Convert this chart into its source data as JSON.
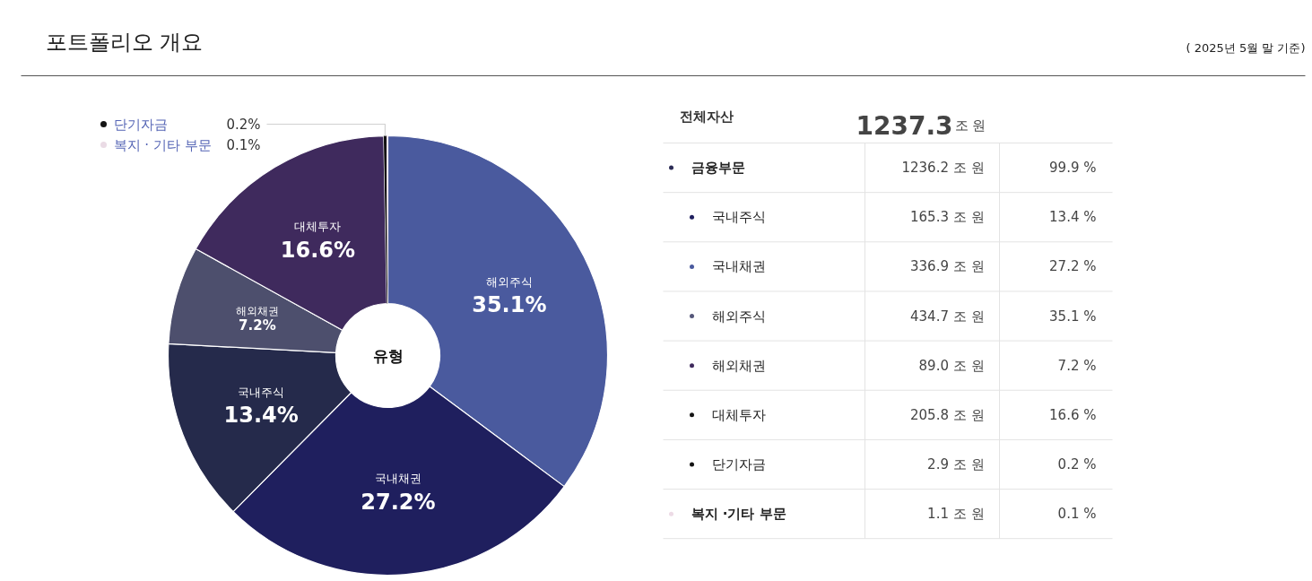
{
  "chart_data": [
    {
      "type": "donut",
      "title": "포트폴리오 개요",
      "categories": [
        "해외주식",
        "국내채권",
        "국내주식",
        "해외채권",
        "대체투자",
        "단기자금",
        "복지 · 기타 부문"
      ],
      "values": [
        35.1,
        27.2,
        13.4,
        7.2,
        16.6,
        0.2,
        0.1
      ],
      "value_labels": [
        "35.1%",
        "27.2%",
        "13.4%",
        "7.2%",
        "16.6%",
        "0.2%",
        "0.1%"
      ],
      "colors": [
        "#4a5a9e",
        "#1f1f5e",
        "#252a4b",
        "#4d4f6d",
        "#3f2a5d",
        "#141414",
        "#eadbe5"
      ],
      "annotations": [
        "유형"
      ],
      "legend": "top left"
    },
    {
      "type": "other",
      "subtitle": "( 2025년 5월 말 기준)",
      "annotations": [
        "전체자산",
        "1237.3",
        "조 원",
        "금융부문",
        "1236.2 조 원",
        "99.9 %",
        "국내주식",
        "165.3 조 원",
        "13.4 %",
        "국내채권",
        "336.9 조 원",
        "27.2 %",
        "해외주식",
        "434.7 조 원",
        "35.1 %",
        "해외채권",
        "89.0 조 원",
        "7.2 %",
        "대체투자",
        "205.8 조 원",
        "16.6 %",
        "단기자금",
        "2.9 조 원",
        "0.2 %",
        "복지 ·기타 부문",
        "1.1 조 원",
        "0.1 %"
      ],
      "colors": [
        "#2b2b55",
        "#1f1f5e",
        "#4a5a9e",
        "#55577a",
        "#3f2a5d",
        "#141414",
        "#141414",
        "#eddbe6"
      ]
    }
  ]
}
